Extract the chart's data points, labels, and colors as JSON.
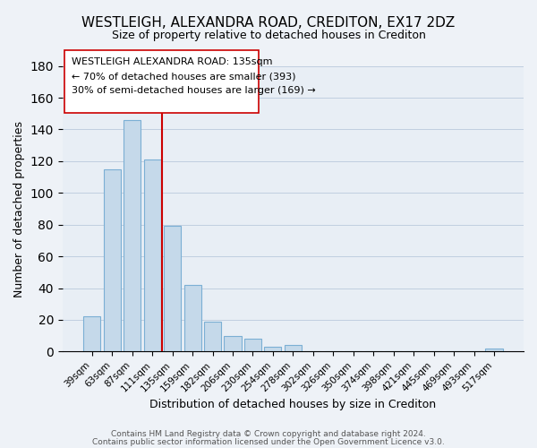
{
  "title": "WESTLEIGH, ALEXANDRA ROAD, CREDITON, EX17 2DZ",
  "subtitle": "Size of property relative to detached houses in Crediton",
  "xlabel": "Distribution of detached houses by size in Crediton",
  "ylabel": "Number of detached properties",
  "bar_labels": [
    "39sqm",
    "63sqm",
    "87sqm",
    "111sqm",
    "135sqm",
    "159sqm",
    "182sqm",
    "206sqm",
    "230sqm",
    "254sqm",
    "278sqm",
    "302sqm",
    "326sqm",
    "350sqm",
    "374sqm",
    "398sqm",
    "421sqm",
    "445sqm",
    "469sqm",
    "493sqm",
    "517sqm"
  ],
  "bar_values": [
    22,
    115,
    146,
    121,
    79,
    42,
    19,
    10,
    8,
    3,
    4,
    0,
    0,
    0,
    0,
    0,
    0,
    0,
    0,
    0,
    2
  ],
  "bar_color": "#c5d9ea",
  "bar_edge_color": "#7bafd4",
  "vline_color": "#cc0000",
  "vline_x_index": 3.5,
  "ylim": [
    0,
    180
  ],
  "yticks": [
    0,
    20,
    40,
    60,
    80,
    100,
    120,
    140,
    160,
    180
  ],
  "annotation_title": "WESTLEIGH ALEXANDRA ROAD: 135sqm",
  "annotation_line1": "← 70% of detached houses are smaller (393)",
  "annotation_line2": "30% of semi-detached houses are larger (169) →",
  "footer1": "Contains HM Land Registry data © Crown copyright and database right 2024.",
  "footer2": "Contains public sector information licensed under the Open Government Licence v3.0.",
  "background_color": "#eef2f7",
  "plot_background_color": "#e8eef5",
  "grid_color": "#c0cfe0",
  "title_fontsize": 11,
  "subtitle_fontsize": 9,
  "annotation_fontsize": 8,
  "footer_fontsize": 6.5
}
